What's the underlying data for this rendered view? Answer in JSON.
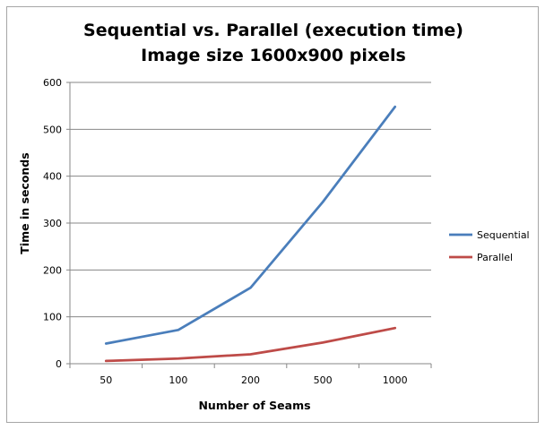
{
  "chart_data": {
    "type": "line",
    "title_lines": [
      "Sequential vs. Parallel (execution time)",
      "Image size 1600x900 pixels"
    ],
    "xlabel": "Number of Seams",
    "ylabel": "Time in seconds",
    "categories": [
      "50",
      "100",
      "200",
      "500",
      "1000"
    ],
    "yticks": [
      0,
      100,
      200,
      300,
      400,
      500,
      600
    ],
    "ylim": [
      0,
      600
    ],
    "grid": "horizontal",
    "legend_position": "right",
    "series": [
      {
        "name": "Sequential",
        "color": "#4a7ebb",
        "values": [
          43,
          72,
          162,
          345,
          548
        ]
      },
      {
        "name": "Parallel",
        "color": "#be4b48",
        "values": [
          6,
          11,
          20,
          45,
          76
        ]
      }
    ]
  }
}
